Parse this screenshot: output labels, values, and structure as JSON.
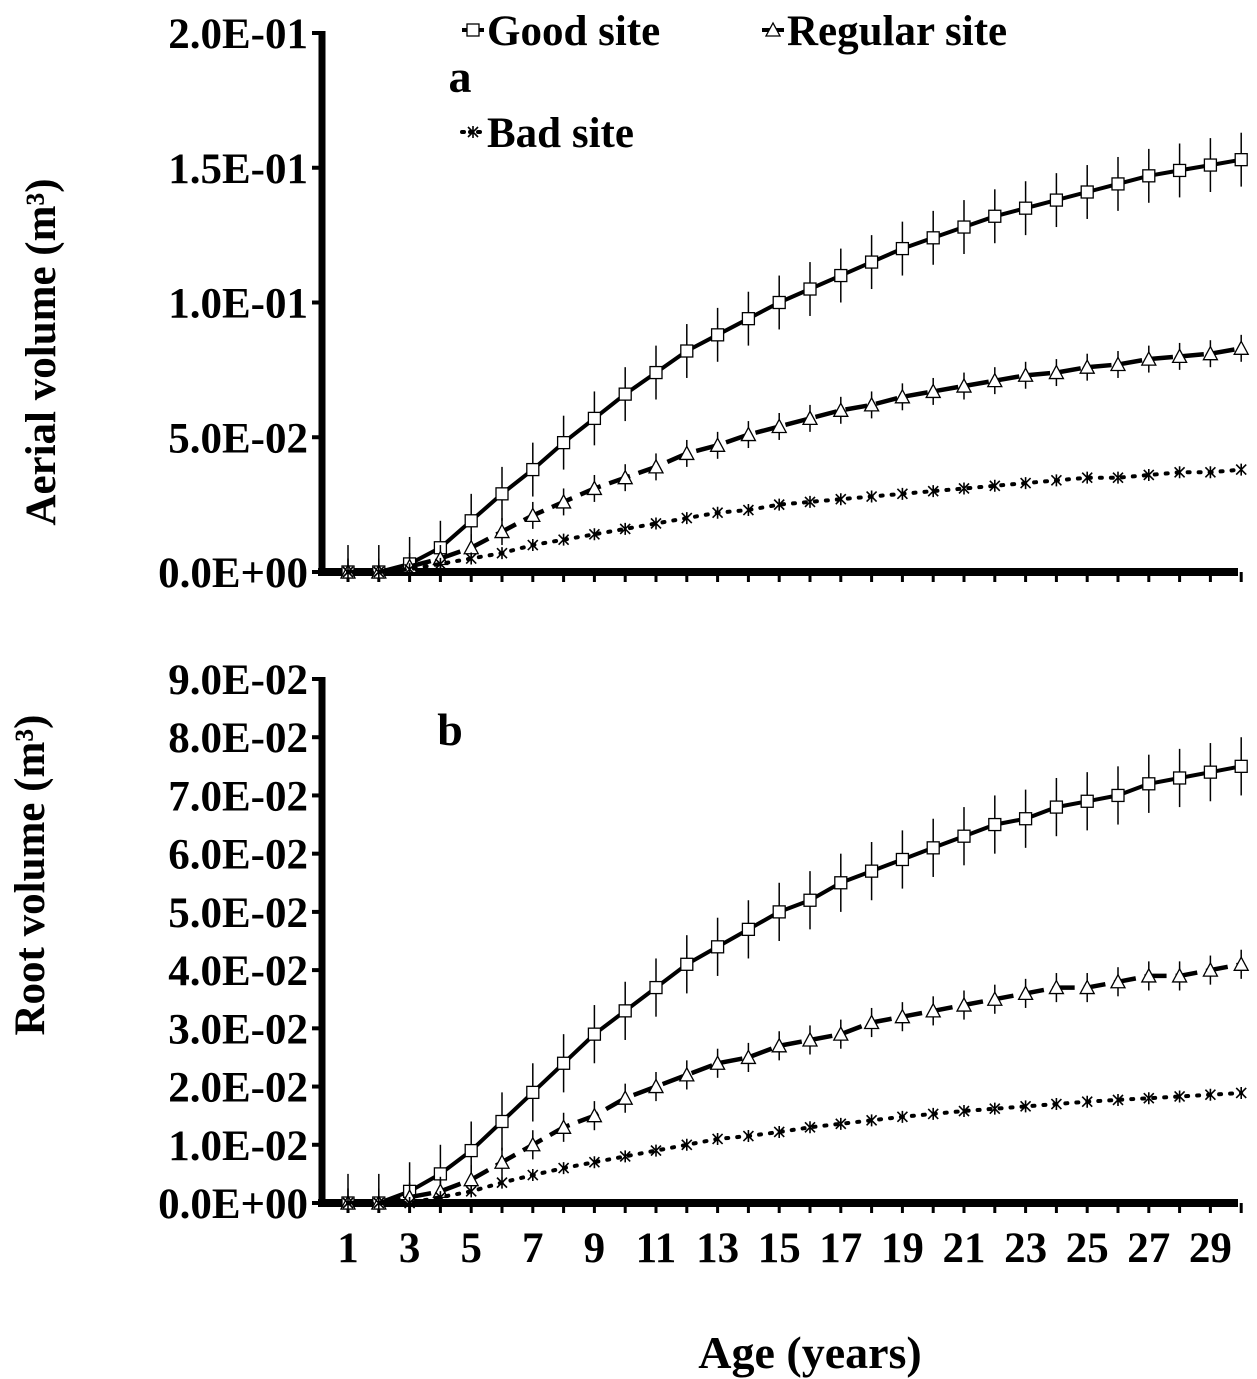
{
  "chart_data": {
    "type": "line",
    "xlabel": "Age (years)",
    "legend": {
      "placement": "top",
      "entries": [
        "Good site",
        "Regular site",
        "Bad site"
      ]
    },
    "x_tick_labels": [
      "1",
      "3",
      "5",
      "7",
      "9",
      "11",
      "13",
      "15",
      "17",
      "19",
      "21",
      "23",
      "25",
      "27",
      "29"
    ],
    "x": [
      1,
      2,
      3,
      4,
      5,
      6,
      7,
      8,
      9,
      10,
      11,
      12,
      13,
      14,
      15,
      16,
      17,
      18,
      19,
      20,
      21,
      22,
      23,
      24,
      25,
      26,
      27,
      28,
      29,
      30
    ],
    "panels": [
      {
        "id": "a",
        "panel_label": "a",
        "ylabel": "Aerial volume (m³)",
        "ylim": [
          0,
          0.2
        ],
        "y_tick_labels": [
          "0.0E+00",
          "5.0E-02",
          "1.0E-01",
          "1.5E-01",
          "2.0E-01"
        ],
        "series": [
          {
            "name": "Good site",
            "marker": "square",
            "line": "solid",
            "values": [
              0.0,
              0.0,
              0.003,
              0.009,
              0.019,
              0.029,
              0.038,
              0.048,
              0.057,
              0.066,
              0.074,
              0.082,
              0.088,
              0.094,
              0.1,
              0.105,
              0.11,
              0.115,
              0.12,
              0.124,
              0.128,
              0.132,
              0.135,
              0.138,
              0.141,
              0.144,
              0.147,
              0.149,
              0.151,
              0.153
            ],
            "error": 0.01
          },
          {
            "name": "Regular site",
            "marker": "triangle",
            "line": "dashed",
            "values": [
              0.0,
              0.0,
              0.002,
              0.005,
              0.009,
              0.015,
              0.021,
              0.026,
              0.031,
              0.035,
              0.039,
              0.044,
              0.047,
              0.051,
              0.054,
              0.057,
              0.06,
              0.062,
              0.065,
              0.067,
              0.069,
              0.071,
              0.073,
              0.074,
              0.076,
              0.077,
              0.079,
              0.08,
              0.081,
              0.083
            ],
            "error": 0.005
          },
          {
            "name": "Bad site",
            "marker": "asterisk",
            "line": "dotted",
            "values": [
              0.0,
              0.0,
              0.001,
              0.003,
              0.005,
              0.007,
              0.01,
              0.012,
              0.014,
              0.016,
              0.018,
              0.02,
              0.022,
              0.023,
              0.025,
              0.026,
              0.027,
              0.028,
              0.029,
              0.03,
              0.031,
              0.032,
              0.033,
              0.034,
              0.035,
              0.035,
              0.036,
              0.037,
              0.037,
              0.038
            ],
            "error": 0.0
          }
        ]
      },
      {
        "id": "b",
        "panel_label": "b",
        "ylabel": "Root volume (m³)",
        "ylim": [
          0,
          0.09
        ],
        "y_tick_labels": [
          "0.0E+00",
          "1.0E-02",
          "2.0E-02",
          "3.0E-02",
          "4.0E-02",
          "5.0E-02",
          "6.0E-02",
          "7.0E-02",
          "8.0E-02",
          "9.0E-02"
        ],
        "series": [
          {
            "name": "Good site",
            "marker": "square",
            "line": "solid",
            "values": [
              0.0,
              0.0,
              0.002,
              0.005,
              0.009,
              0.014,
              0.019,
              0.024,
              0.029,
              0.033,
              0.037,
              0.041,
              0.044,
              0.047,
              0.05,
              0.052,
              0.055,
              0.057,
              0.059,
              0.061,
              0.063,
              0.065,
              0.066,
              0.068,
              0.069,
              0.07,
              0.072,
              0.073,
              0.074,
              0.075
            ],
            "error": 0.005
          },
          {
            "name": "Regular site",
            "marker": "triangle",
            "line": "dashed",
            "values": [
              0.0,
              0.0,
              0.001,
              0.002,
              0.004,
              0.007,
              0.01,
              0.013,
              0.015,
              0.018,
              0.02,
              0.022,
              0.024,
              0.025,
              0.027,
              0.028,
              0.029,
              0.031,
              0.032,
              0.033,
              0.034,
              0.035,
              0.036,
              0.037,
              0.037,
              0.038,
              0.039,
              0.039,
              0.04,
              0.041
            ],
            "error": 0.0025
          },
          {
            "name": "Bad site",
            "marker": "asterisk",
            "line": "dotted",
            "values": [
              0.0,
              0.0,
              0.0,
              0.001,
              0.002,
              0.0035,
              0.0048,
              0.006,
              0.007,
              0.008,
              0.009,
              0.01,
              0.011,
              0.0115,
              0.0122,
              0.013,
              0.0136,
              0.0142,
              0.0148,
              0.0153,
              0.0158,
              0.0162,
              0.0166,
              0.017,
              0.0174,
              0.0177,
              0.018,
              0.0183,
              0.0186,
              0.0189
            ],
            "error": 0.0
          }
        ]
      }
    ]
  }
}
